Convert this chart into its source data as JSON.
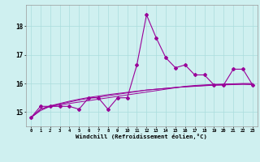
{
  "hours": [
    0,
    1,
    2,
    3,
    4,
    5,
    6,
    7,
    8,
    9,
    10,
    11,
    12,
    13,
    14,
    15,
    16,
    17,
    18,
    19,
    20,
    21,
    22,
    23
  ],
  "windchill": [
    14.8,
    15.2,
    15.2,
    15.2,
    15.2,
    15.1,
    15.5,
    15.5,
    15.1,
    15.5,
    15.5,
    16.65,
    18.4,
    17.6,
    16.9,
    16.55,
    16.65,
    16.3,
    16.3,
    15.95,
    15.95,
    16.5,
    16.5,
    15.95
  ],
  "line2": [
    14.8,
    15.1,
    15.2,
    15.25,
    15.3,
    15.35,
    15.4,
    15.45,
    15.5,
    15.55,
    15.6,
    15.65,
    15.7,
    15.75,
    15.8,
    15.85,
    15.9,
    15.93,
    15.95,
    15.97,
    15.98,
    15.99,
    16.0,
    16.0
  ],
  "line3": [
    14.8,
    15.05,
    15.2,
    15.28,
    15.35,
    15.42,
    15.48,
    15.52,
    15.57,
    15.62,
    15.67,
    15.72,
    15.77,
    15.8,
    15.83,
    15.86,
    15.89,
    15.91,
    15.93,
    15.95,
    15.96,
    15.97,
    15.98,
    15.97
  ],
  "line4": [
    14.8,
    15.1,
    15.22,
    15.3,
    15.38,
    15.45,
    15.51,
    15.56,
    15.61,
    15.65,
    15.69,
    15.73,
    15.77,
    15.8,
    15.83,
    15.86,
    15.88,
    15.9,
    15.92,
    15.94,
    15.95,
    15.96,
    15.97,
    15.96
  ],
  "line_color": "#990099",
  "bg_color": "#cff0f0",
  "grid_color": "#aadddd",
  "xlabel": "Windchill (Refroidissement éolien,°C)",
  "yticks": [
    15,
    16,
    17,
    18
  ],
  "xticks": [
    0,
    1,
    2,
    3,
    4,
    5,
    6,
    7,
    8,
    9,
    10,
    11,
    12,
    13,
    14,
    15,
    16,
    17,
    18,
    19,
    20,
    21,
    22,
    23
  ],
  "ylim": [
    14.5,
    18.75
  ],
  "xlim": [
    -0.5,
    23.5
  ],
  "figsize": [
    3.2,
    2.0
  ],
  "dpi": 100
}
